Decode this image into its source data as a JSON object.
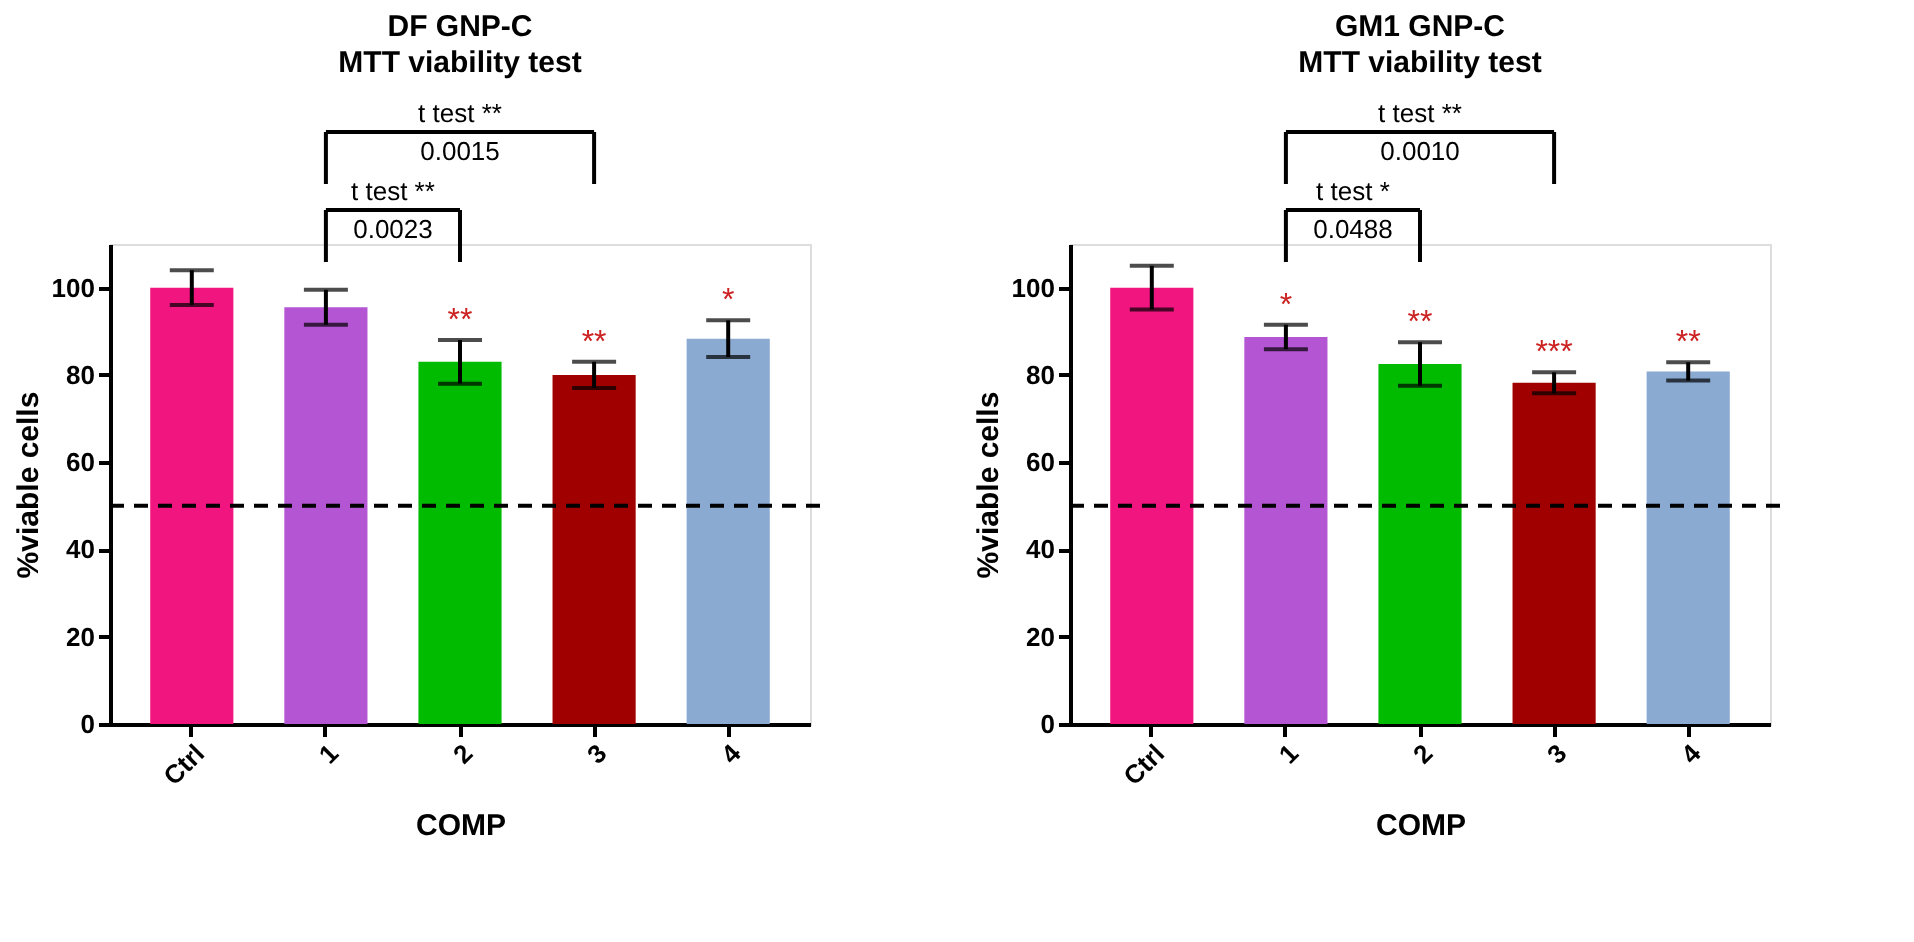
{
  "chart_data": [
    {
      "type": "bar",
      "title": "DF GNP-C",
      "subtitle": "MTT viability test",
      "xlabel": "COMP",
      "ylabel": "%viable cells",
      "categories": [
        "Ctrl",
        "1",
        "2",
        "3",
        "4"
      ],
      "values": [
        100,
        95.5,
        83,
        80,
        88.3
      ],
      "colors": [
        "#f0157f",
        "#b455d4",
        "#00bb00",
        "#a00000",
        "#8aaad2"
      ],
      "errors": [
        4,
        4,
        5,
        3,
        4.2
      ],
      "ylim": [
        0,
        110
      ],
      "yticks": [
        0,
        20,
        40,
        60,
        80,
        100
      ],
      "grid": false,
      "ref_lines": [
        {
          "axis": "y",
          "value": 50,
          "color": "#000000",
          "line_style": "dashed"
        }
      ],
      "annotations": [
        "t test **",
        "0.0015",
        "t test **",
        "0.0023",
        {
          "text": "**",
          "x": "2",
          "y": 88
        },
        {
          "text": "**",
          "x": "3",
          "y": 83
        },
        {
          "text": "*",
          "x": "4",
          "y": 92.5
        }
      ]
    },
    {
      "type": "bar",
      "title": "GM1 GNP-C",
      "subtitle": "MTT viability test",
      "xlabel": "COMP",
      "ylabel": "%viable cells",
      "categories": [
        "Ctrl",
        "1",
        "2",
        "3",
        "4"
      ],
      "values": [
        100,
        88.7,
        82.5,
        78.2,
        80.8
      ],
      "colors": [
        "#f0157f",
        "#b455d4",
        "#00bb00",
        "#a00000",
        "#8aaad2"
      ],
      "errors": [
        5,
        2.8,
        5,
        2.4,
        2.1
      ],
      "ylim": [
        0,
        110
      ],
      "yticks": [
        0,
        20,
        40,
        60,
        80,
        100
      ],
      "grid": false,
      "ref_lines": [
        {
          "axis": "y",
          "value": 50,
          "color": "#000000",
          "line_style": "dashed"
        }
      ],
      "annotations": [
        "t test **",
        "0.0010",
        "t test *",
        "0.0488",
        {
          "text": "*",
          "x": "1",
          "y": 91.5
        },
        {
          "text": "**",
          "x": "2",
          "y": 87.5
        },
        {
          "text": "***",
          "x": "3",
          "y": 80.6
        },
        {
          "text": "**",
          "x": "4",
          "y": 82.9
        }
      ]
    }
  ]
}
